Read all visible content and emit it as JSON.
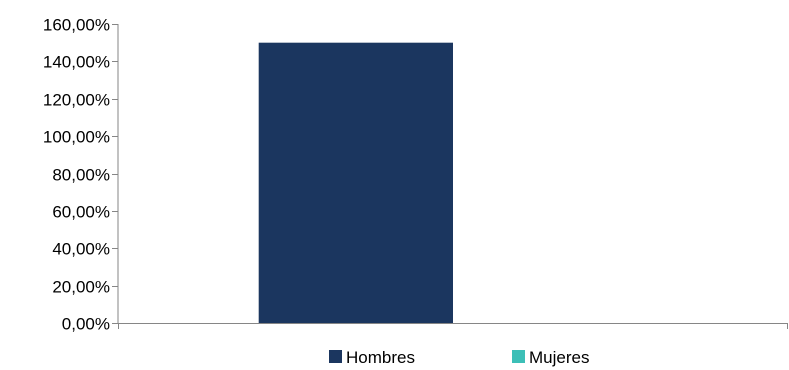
{
  "chart_data": {
    "type": "bar",
    "categories": [
      ""
    ],
    "series": [
      {
        "name": "Hombres",
        "values": [
          150.0
        ],
        "color": "#1B365F"
      },
      {
        "name": "Mujeres",
        "values": [
          0.0
        ],
        "color": "#3CBFB7"
      }
    ],
    "title": "",
    "xlabel": "",
    "ylabel": "",
    "ylim": [
      0,
      160
    ],
    "yticks": [
      0,
      20,
      40,
      60,
      80,
      100,
      120,
      140,
      160
    ],
    "ytick_labels": [
      "0,00%",
      "20,00%",
      "40,00%",
      "60,00%",
      "80,00%",
      "100,00%",
      "120,00%",
      "140,00%",
      "160,00%"
    ],
    "grid": false,
    "legend_position": "bottom"
  }
}
